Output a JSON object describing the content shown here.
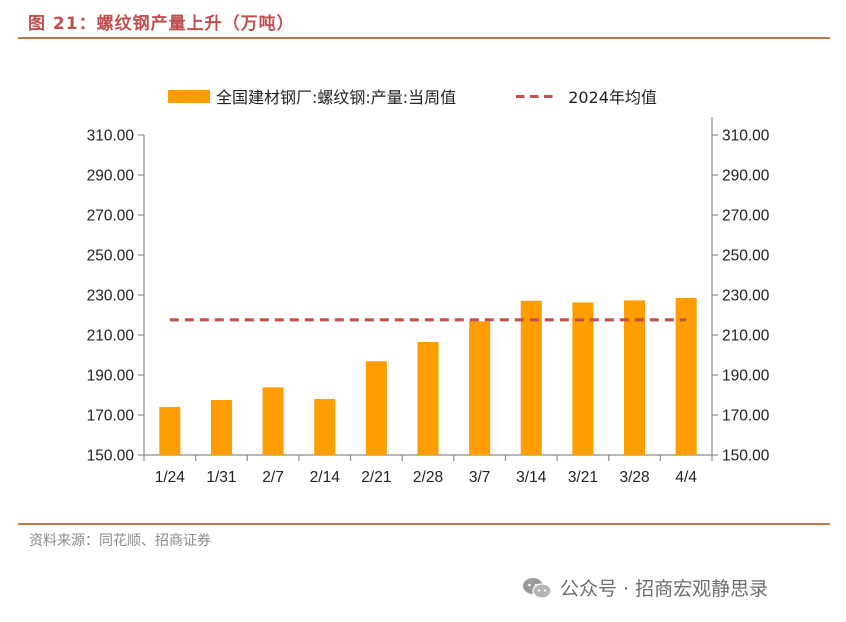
{
  "figure": {
    "title": "图 21：螺纹钢产量上升（万吨）"
  },
  "footer": {
    "source": "资料来源：同花顺、招商证券",
    "watermark": "公众号 · 招商宏观静思录",
    "watermark_icon": "wechat-icon"
  },
  "colors": {
    "bar": "#ff9c00",
    "avg_line": "#c0504d",
    "title": "#c0504d",
    "rule": "#c0754e"
  },
  "chart_data": {
    "type": "bar",
    "categories": [
      "1/24",
      "1/31",
      "2/7",
      "2/14",
      "2/21",
      "2/28",
      "3/7",
      "3/14",
      "3/21",
      "3/28",
      "4/4"
    ],
    "series": [
      {
        "name": "全国建材钢厂:螺纹钢:产量:当周值",
        "type": "bar",
        "values": [
          174.0,
          177.5,
          183.8,
          178.0,
          196.9,
          206.5,
          216.8,
          227.1,
          226.3,
          227.3,
          228.5
        ]
      },
      {
        "name": "2024年均值",
        "type": "line",
        "style": "dashed",
        "values": [
          217.6,
          217.6,
          217.6,
          217.6,
          217.6,
          217.6,
          217.6,
          217.6,
          217.6,
          217.6,
          217.6
        ]
      }
    ],
    "ylim": [
      150,
      310
    ],
    "yticks": [
      "150.00",
      "170.00",
      "190.00",
      "210.00",
      "230.00",
      "250.00",
      "270.00",
      "290.00",
      "310.00"
    ],
    "secondary_yaxis": true,
    "grid": false,
    "legend_position": "top"
  }
}
